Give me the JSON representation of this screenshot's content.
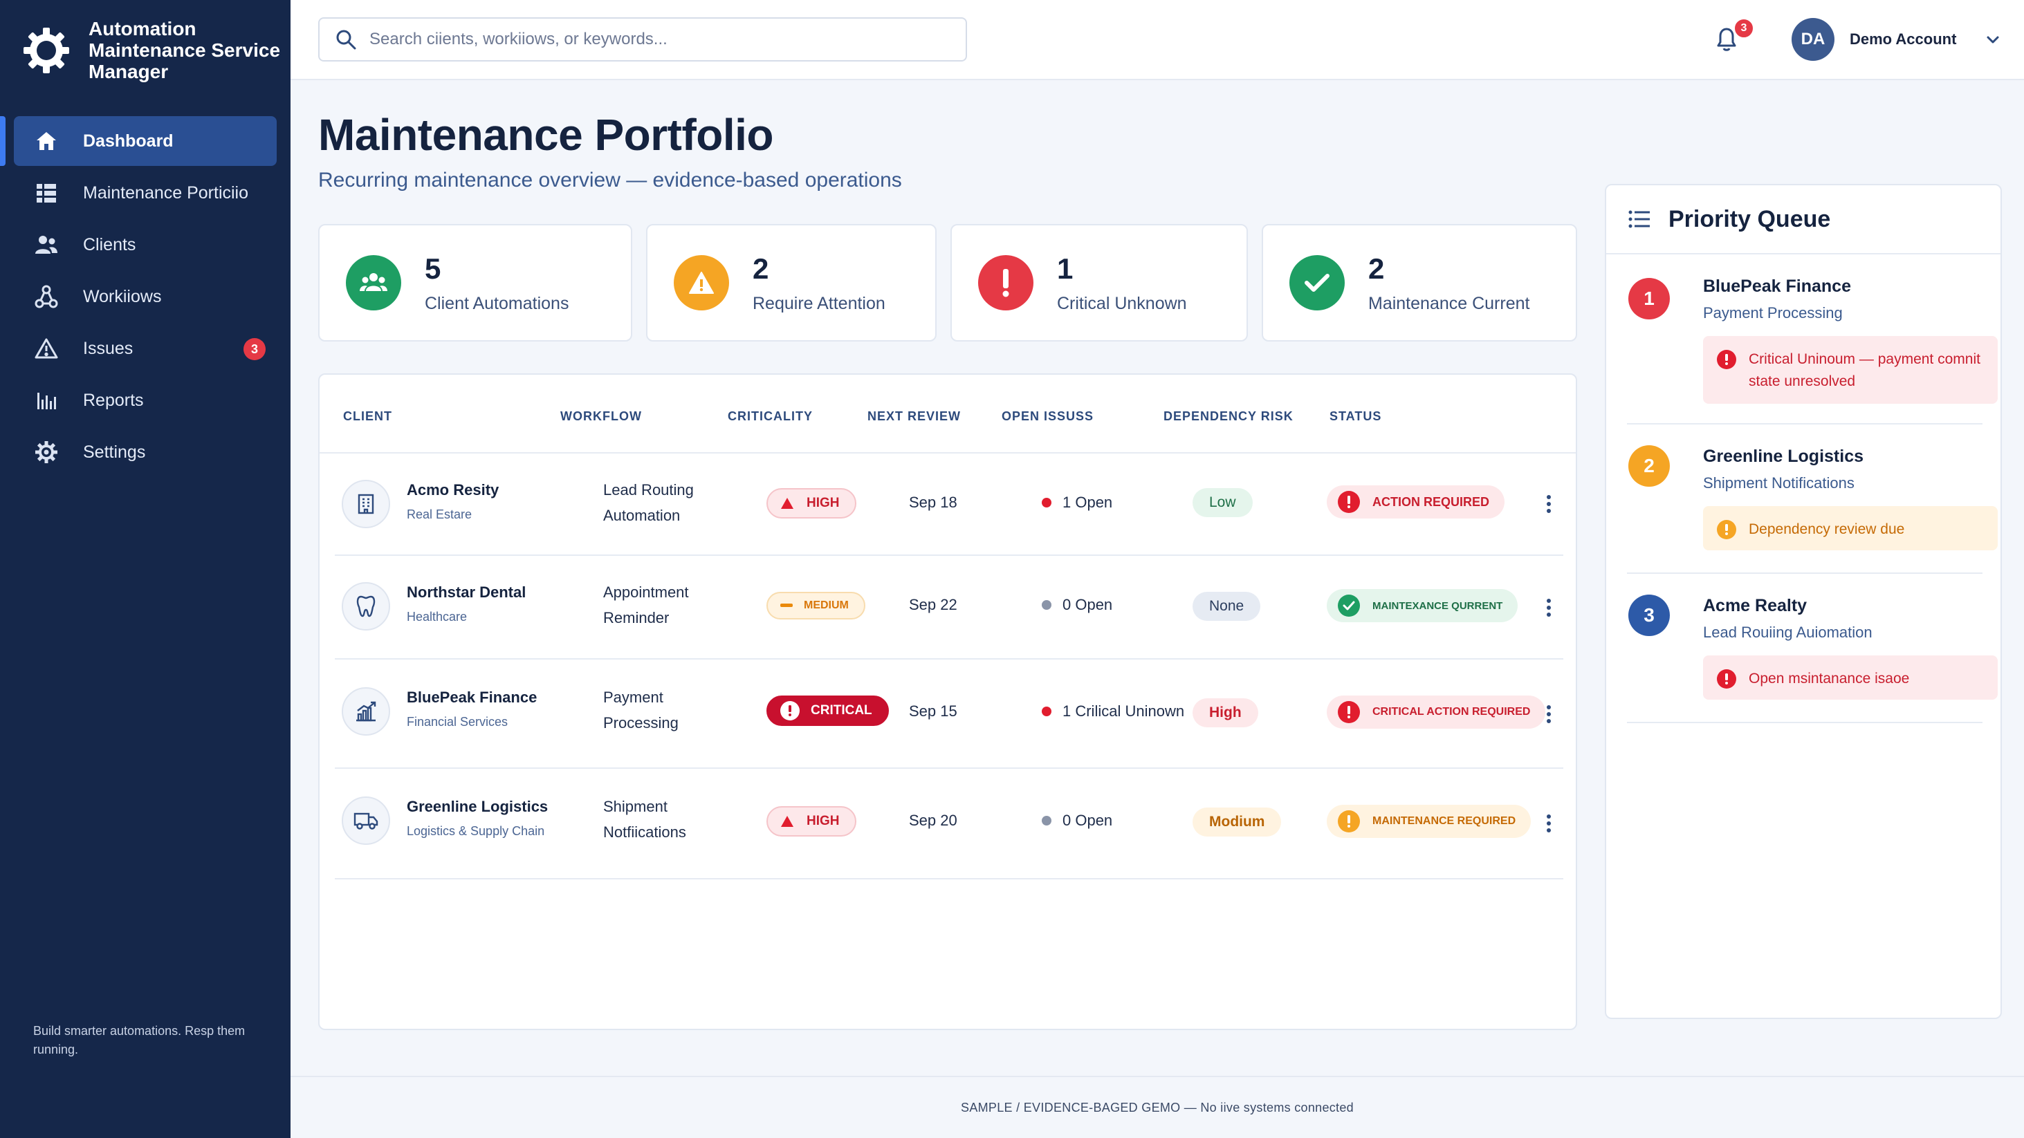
{
  "app": {
    "title": "Automation Maintenance Service Manager",
    "tagline": "Build smarter automations. Resp them running."
  },
  "sidebar": {
    "items": [
      {
        "label": "Dashboard",
        "icon": "home-icon",
        "active": true
      },
      {
        "label": "Maintenance Porticiio",
        "icon": "grid-icon"
      },
      {
        "label": "Clients",
        "icon": "users-icon"
      },
      {
        "label": "Workiiows",
        "icon": "workflow-icon"
      },
      {
        "label": "Issues",
        "icon": "warning-icon",
        "badge": "3"
      },
      {
        "label": "Reports",
        "icon": "bar-chart-icon"
      },
      {
        "label": "Settings",
        "icon": "gear-icon"
      }
    ]
  },
  "topbar": {
    "search_placeholder": "Search ciiеnts, workiiows, or keywords...",
    "notifications_count": "3",
    "account_initials": "DA",
    "account_name": "Demo Account"
  },
  "page": {
    "title": "Maintenance Portfolio",
    "subtitle": "Recurring maintenance overview — evidence-based operations"
  },
  "stats": [
    {
      "value": "5",
      "label": "Client Automations",
      "color": "#1e9e63",
      "icon": "team-icon"
    },
    {
      "value": "2",
      "label": "Require Attention",
      "color": "#f5a524",
      "icon": "warning-icon"
    },
    {
      "value": "1",
      "label": "Critical Unknown",
      "color": "#e53945",
      "icon": "exclamation-icon"
    },
    {
      "value": "2",
      "label": "Maintenance Current",
      "color": "#1e9e63",
      "icon": "check-icon"
    }
  ],
  "table": {
    "columns": [
      "CLIENT",
      "WORKFLOW",
      "CRITICALITY",
      "NEXT REVIEW",
      "OPEN ISSUSS",
      "DEPENDENCY RISK",
      "STATUS"
    ],
    "rows": [
      {
        "client": "Acmo Resity",
        "industry": "Real Estare",
        "workflow": [
          "Lead Routing",
          "Automation"
        ],
        "criticality": "HIGH",
        "review": "Sep 18",
        "issues": "1 Open",
        "issue_color": "#e11d2e",
        "risk": "Low",
        "status": "ACTION REQUIRED",
        "icon": "building-icon"
      },
      {
        "client": "Northstar Dental",
        "industry": "Healthcare",
        "workflow": [
          "Appointment",
          "Reminder"
        ],
        "criticality": "MEDIUM",
        "review": "Sep 22",
        "issues": "0 Open",
        "issue_color": "#8a94a8",
        "risk": "None",
        "status": "MAINTEXANCE QURRENT",
        "icon": "tooth-icon"
      },
      {
        "client": "BluePeak Finance",
        "industry": "Financial Services",
        "workflow": [
          "Payment",
          "Processing"
        ],
        "criticality": "CRITICAL",
        "review": "Sep 15",
        "issues": "1 Crilical Uninown",
        "issue_color": "#e11d2e",
        "risk": "High",
        "status": "CRITICAL ACTION REQUIRED",
        "icon": "finance-chart-icon"
      },
      {
        "client": "Greenline Logistics",
        "industry": "Logistics & Supply Chain",
        "workflow": [
          "Shipment",
          "Notfiications"
        ],
        "criticality": "HIGH",
        "review": "Sep 20",
        "issues": "0 Open",
        "issue_color": "#8a94a8",
        "risk": "Modium",
        "status": "MAINTENANCE REQUIRED",
        "icon": "truck-icon"
      }
    ]
  },
  "priority_queue": {
    "title": "Priority Queue",
    "items": [
      {
        "rank": "1",
        "client": "BluePeak Finance",
        "workflow": "Payment Processing",
        "note": "Critical Uninoum — payment comnit state unresolved",
        "color": "#e53945"
      },
      {
        "rank": "2",
        "client": "Greenline Logistics",
        "workflow": "Shipment Notifications",
        "note": "Dependency review due",
        "color": "#f5a524"
      },
      {
        "rank": "3",
        "client": "Acme Realty",
        "workflow": "Lead Rouiing Auiomation",
        "note": "Open msintanance isaoe",
        "color": "#2d5aa8"
      }
    ]
  },
  "footer": "SAMPLE  /  EVIDENCE-BAGED GEMO — No iive systems connected"
}
